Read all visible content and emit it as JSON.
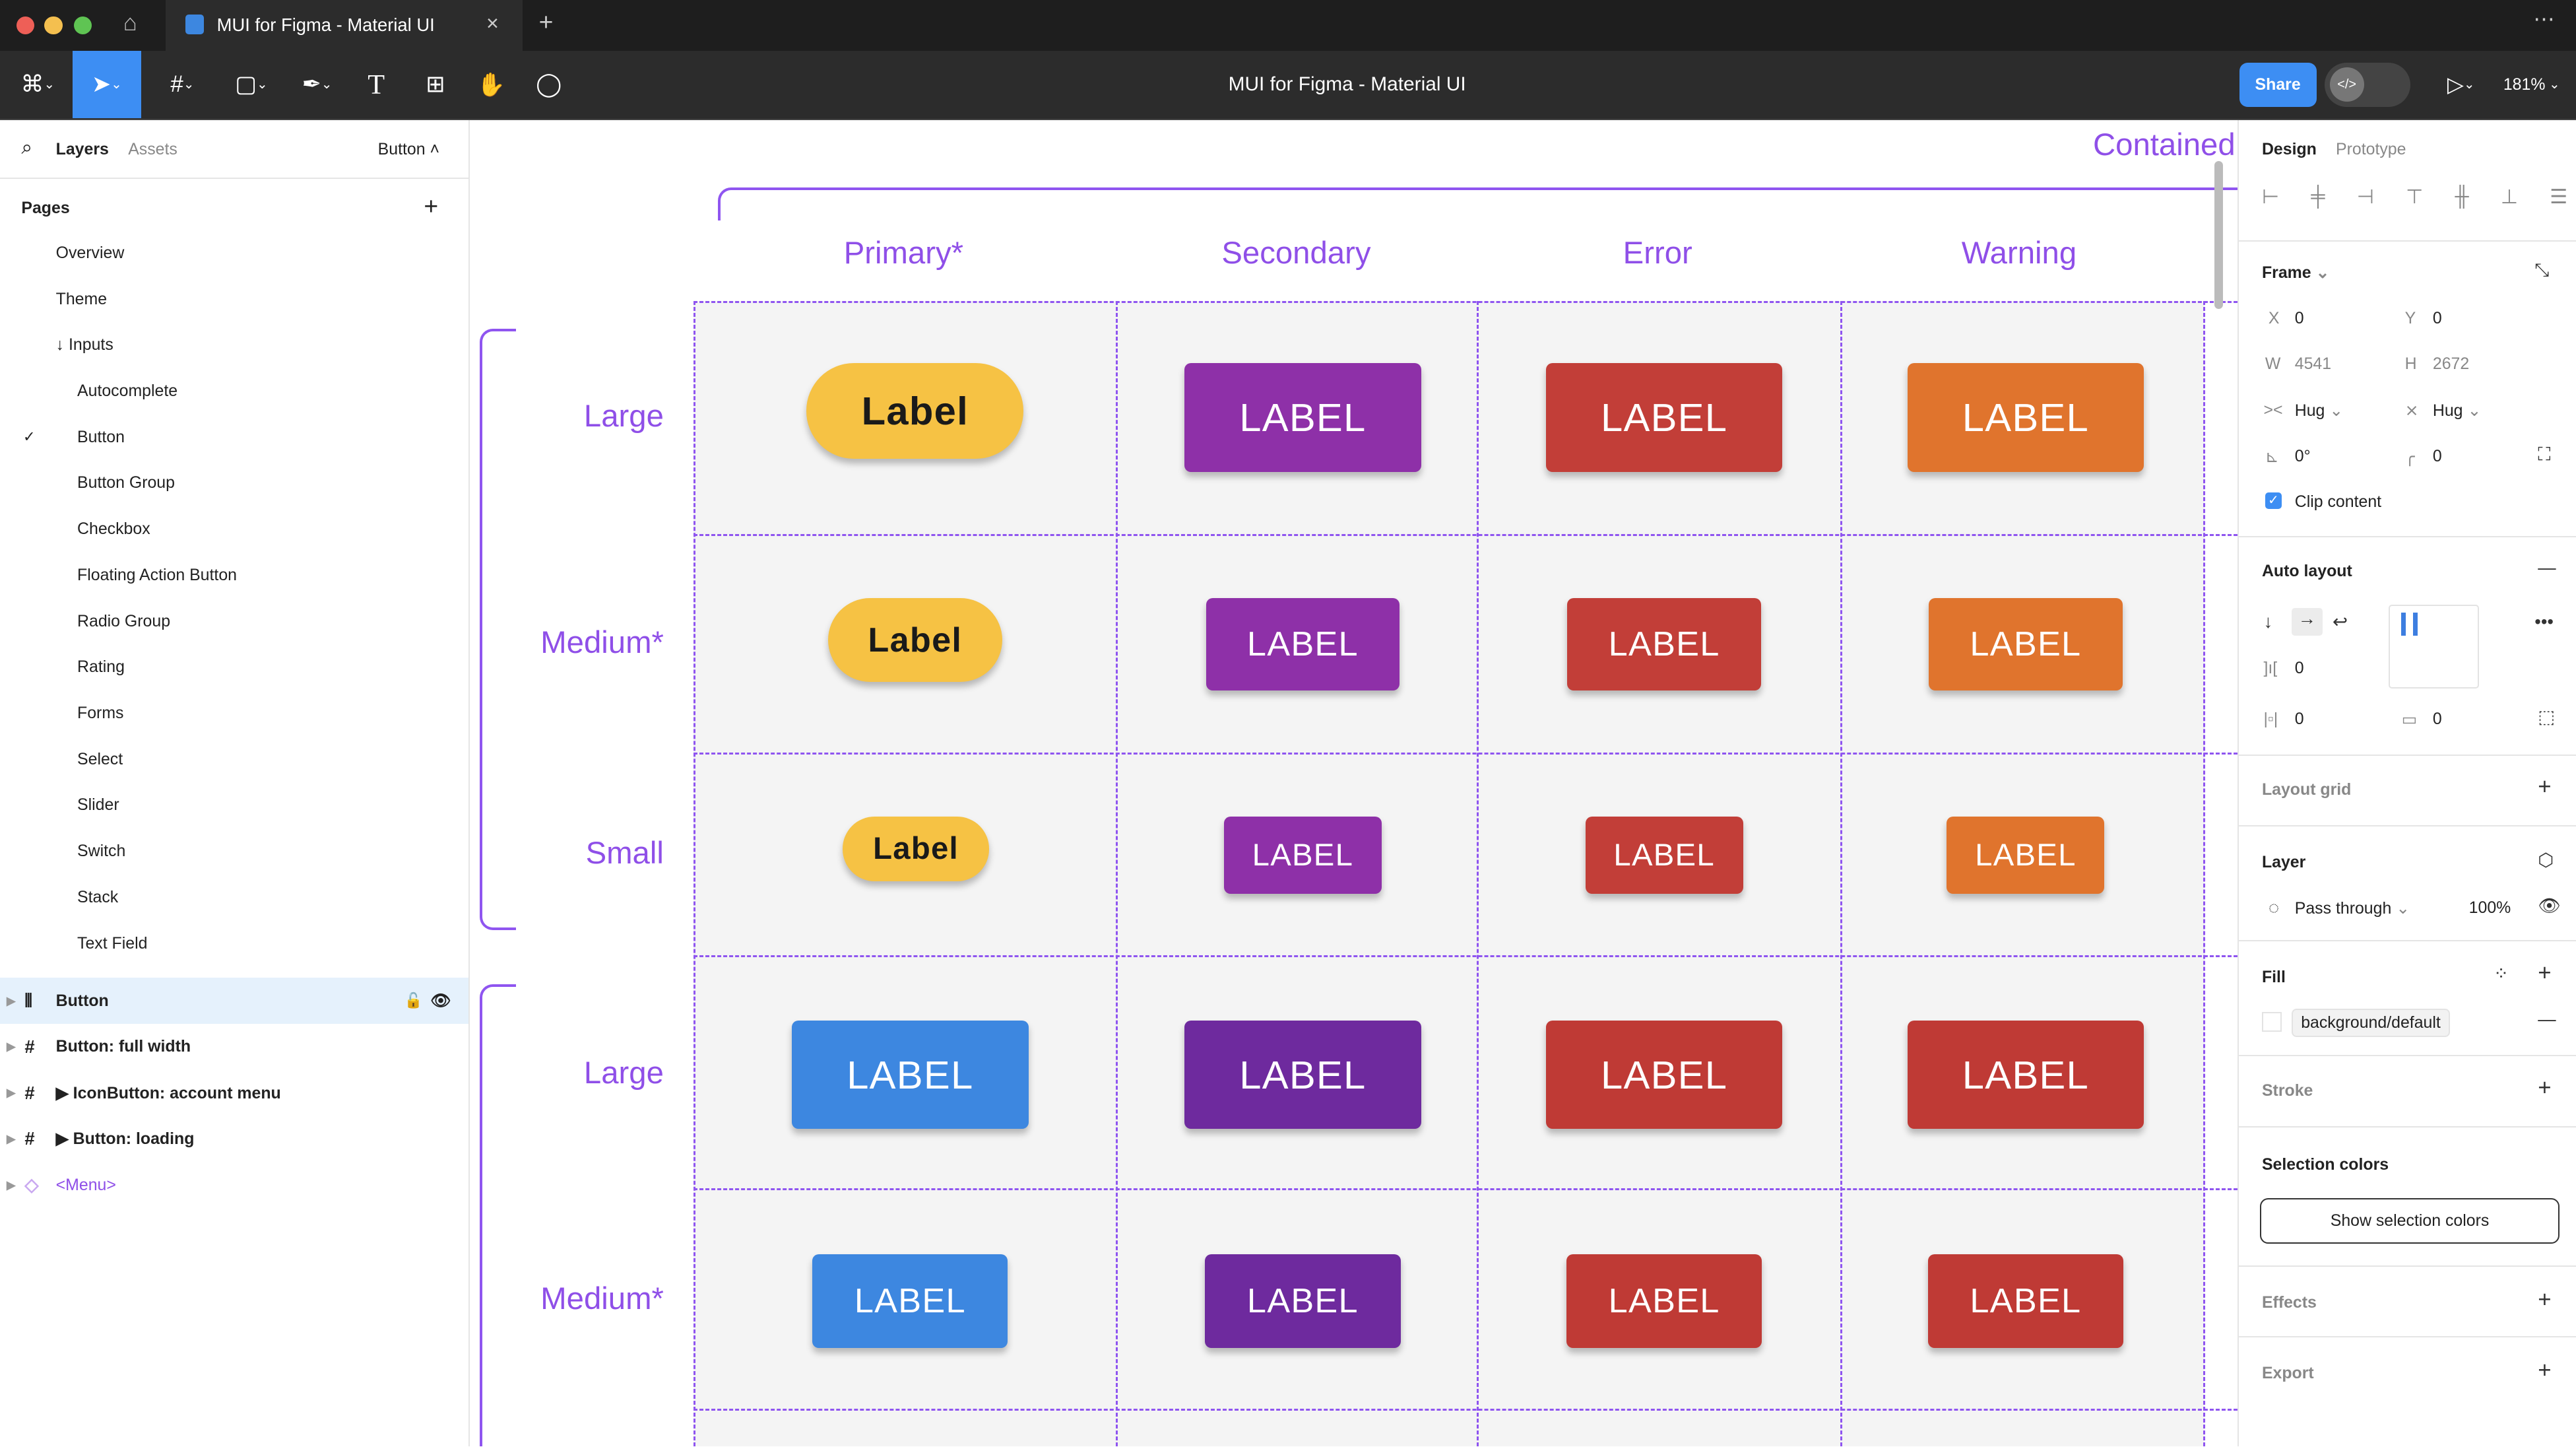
{
  "window": {
    "tab_title": "MUI for Figma - Material UI",
    "title": "MUI for Figma - Material UI"
  },
  "toolbar": {
    "share_label": "Share",
    "dev_mode_icon": "code-icon",
    "zoom": "181%"
  },
  "left_panel": {
    "tabs": [
      "Layers",
      "Assets"
    ],
    "page_selector": "Button",
    "pages_title": "Pages",
    "pages": [
      {
        "label": "Overview",
        "indent": 0
      },
      {
        "label": "Theme",
        "indent": 0
      },
      {
        "label": "↓ Inputs",
        "indent": 0
      },
      {
        "label": "Autocomplete",
        "indent": 1
      },
      {
        "label": "Button",
        "indent": 1,
        "current": true
      },
      {
        "label": "Button Group",
        "indent": 1
      },
      {
        "label": "Checkbox",
        "indent": 1
      },
      {
        "label": "Floating Action Button",
        "indent": 1
      },
      {
        "label": "Radio Group",
        "indent": 1
      },
      {
        "label": "Rating",
        "indent": 1
      },
      {
        "label": "Forms",
        "indent": 1
      },
      {
        "label": "Select",
        "indent": 1
      },
      {
        "label": "Slider",
        "indent": 1
      },
      {
        "label": "Switch",
        "indent": 1
      },
      {
        "label": "Stack",
        "indent": 1
      },
      {
        "label": "Text Field",
        "indent": 1
      }
    ],
    "layers": [
      {
        "label": "Button",
        "icon": "auto-layout-icon",
        "selected": true
      },
      {
        "label": "Button: full width",
        "icon": "frame-icon"
      },
      {
        "label": "▶ IconButton: account menu",
        "icon": "frame-icon"
      },
      {
        "label": "▶ Button: loading",
        "icon": "frame-icon"
      },
      {
        "label": "<Menu>",
        "icon": "component-icon",
        "component": true
      }
    ]
  },
  "canvas": {
    "section_title": "Contained",
    "columns": [
      "Primary*",
      "Secondary",
      "Error",
      "Warning"
    ],
    "row_labels": [
      "Large",
      "Medium*",
      "Small",
      "Large",
      "Medium*"
    ],
    "rows": [
      {
        "cells": [
          {
            "label": "Label",
            "color": "#f6c244",
            "text": "#1a1a1a",
            "pill": true
          },
          {
            "label": "LABEL",
            "color": "#8e30a8"
          },
          {
            "label": "LABEL",
            "color": "#c23e38"
          },
          {
            "label": "LABEL",
            "color": "#e0742d"
          }
        ]
      },
      {
        "cells": [
          {
            "label": "Label",
            "color": "#f6c244",
            "text": "#1a1a1a",
            "pill": true
          },
          {
            "label": "LABEL",
            "color": "#8e30a8"
          },
          {
            "label": "LABEL",
            "color": "#c23e38"
          },
          {
            "label": "LABEL",
            "color": "#e0742d"
          }
        ]
      },
      {
        "cells": [
          {
            "label": "Label",
            "color": "#f6c244",
            "text": "#1a1a1a",
            "pill": true
          },
          {
            "label": "LABEL",
            "color": "#8e30a8"
          },
          {
            "label": "LABEL",
            "color": "#c23e38"
          },
          {
            "label": "LABEL",
            "color": "#e0742d"
          }
        ]
      },
      {
        "cells": [
          {
            "label": "LABEL",
            "color": "#3d87e0"
          },
          {
            "label": "LABEL",
            "color": "#6e2a9e"
          },
          {
            "label": "LABEL",
            "color": "#bf3a35"
          },
          {
            "label": "LABEL",
            "color": "#bf3a35"
          }
        ]
      },
      {
        "cells": [
          {
            "label": "LABEL",
            "color": "#3d87e0"
          },
          {
            "label": "LABEL",
            "color": "#6e2a9e"
          },
          {
            "label": "LABEL",
            "color": "#bf3a35"
          },
          {
            "label": "LABEL",
            "color": "#bf3a35"
          }
        ]
      }
    ]
  },
  "right_panel": {
    "tabs": [
      "Design",
      "Prototype"
    ],
    "frame": {
      "title": "Frame",
      "x": "0",
      "y": "0",
      "w": "4541",
      "h": "2672",
      "width_mode": "Hug",
      "height_mode": "Hug",
      "rotation": "0°",
      "radius": "0",
      "clip_content": "Clip content",
      "clip_checked": true
    },
    "auto_layout": {
      "title": "Auto layout",
      "gap": "0",
      "padding_h": "0",
      "padding_v": "0"
    },
    "layout_grid": "Layout grid",
    "layer": {
      "title": "Layer",
      "blend": "Pass through",
      "opacity": "100%"
    },
    "fill": {
      "title": "Fill",
      "style": "background/default"
    },
    "stroke": "Stroke",
    "selection_colors": {
      "title": "Selection colors",
      "button": "Show selection colors"
    },
    "effects": "Effects",
    "export": "Export"
  },
  "colors": {
    "accent": "#3d8ef3",
    "canvas_guides": "#8f55f0"
  }
}
